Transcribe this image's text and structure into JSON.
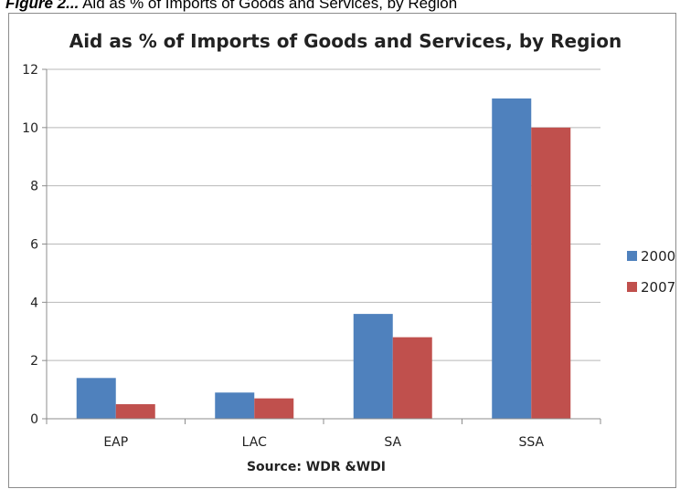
{
  "figure_caption": {
    "label": "Figure 2...",
    "text": "Aid as % of Imports of Goods and Services, by Region"
  },
  "chart_data": {
    "type": "bar",
    "title": "Aid as % of Imports of Goods and Services, by Region",
    "xlabel": "Source: WDR &WDI",
    "ylabel": "",
    "categories": [
      "EAP",
      "LAC",
      "SA",
      "SSA"
    ],
    "series": [
      {
        "name": "2000",
        "values": [
          1.4,
          0.9,
          3.6,
          11.0
        ],
        "color": "#4f81bd"
      },
      {
        "name": "2007",
        "values": [
          0.5,
          0.7,
          2.8,
          10.0
        ],
        "color": "#c0504d"
      }
    ],
    "ylim": [
      0,
      12
    ],
    "yticks": [
      0,
      2,
      4,
      6,
      8,
      10,
      12
    ],
    "grid": true,
    "legend": "right"
  }
}
